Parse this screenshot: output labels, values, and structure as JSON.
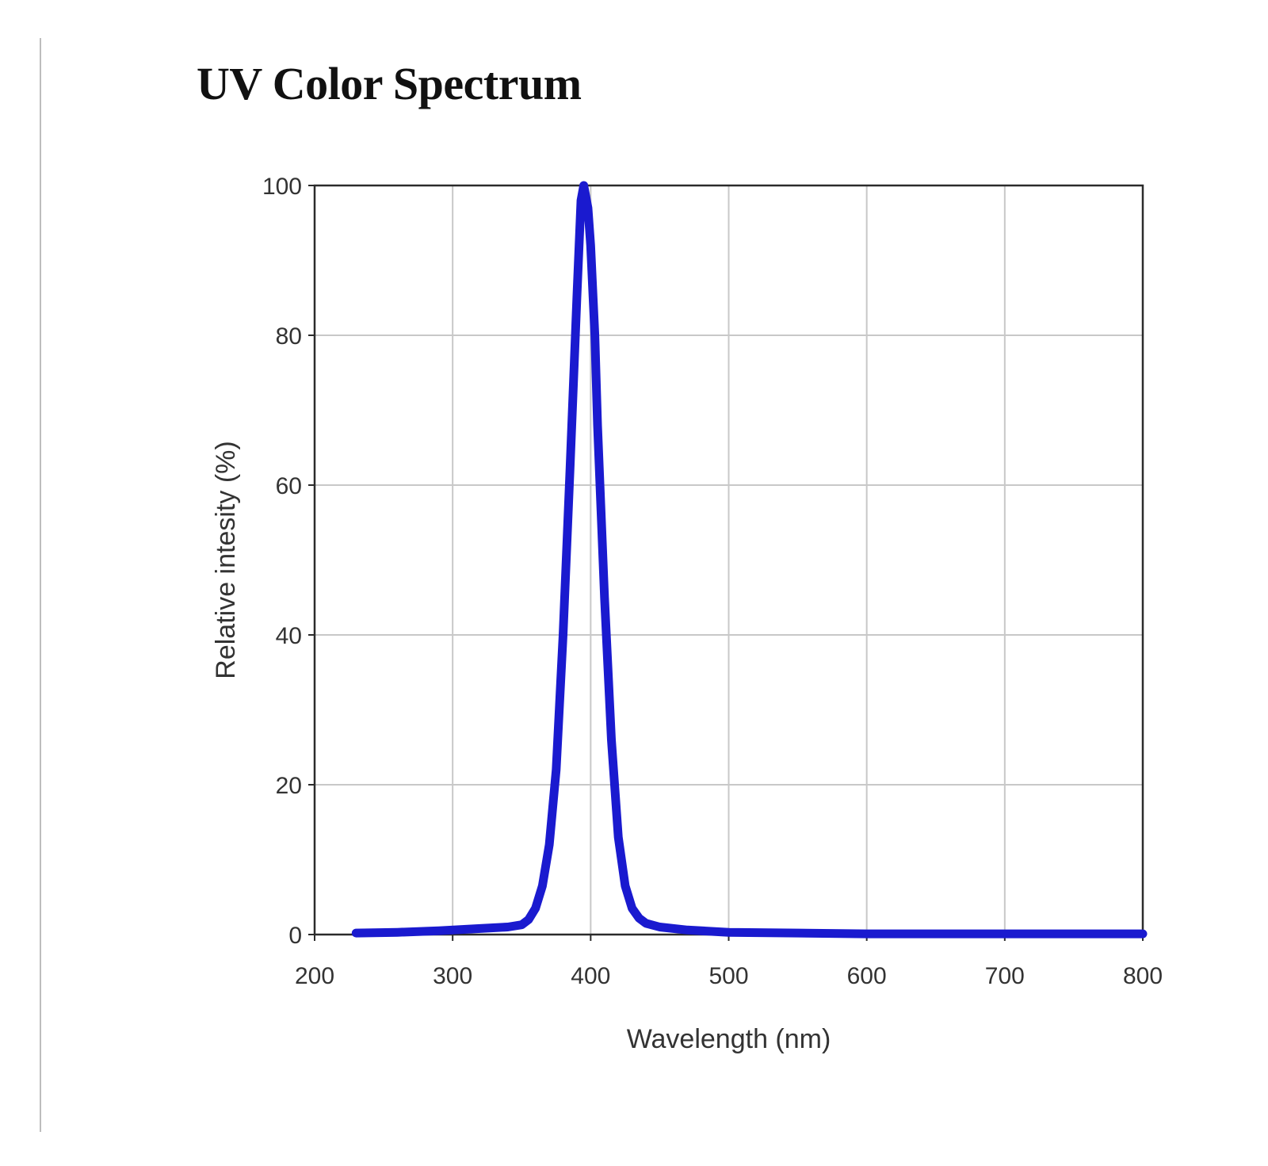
{
  "page": {
    "title": "UV Color Spectrum"
  },
  "chart_data": {
    "type": "line",
    "title": "UV Color Spectrum",
    "xlabel": "Wavelength (nm)",
    "ylabel": "Relative intesity (%)",
    "xlim": [
      200,
      800
    ],
    "ylim": [
      0,
      100
    ],
    "xticks": [
      200,
      300,
      400,
      500,
      600,
      700,
      800
    ],
    "yticks": [
      0,
      20,
      40,
      60,
      80,
      100
    ],
    "grid": true,
    "legend": "none",
    "series": [
      {
        "color": "#1a1acf",
        "x": [
          230,
          260,
          290,
          320,
          340,
          350,
          355,
          360,
          365,
          370,
          375,
          380,
          385,
          390,
          393,
          395,
          398,
          400,
          403,
          405,
          410,
          415,
          420,
          425,
          430,
          435,
          440,
          450,
          470,
          500,
          550,
          600,
          700,
          800
        ],
        "y": [
          0.2,
          0.3,
          0.5,
          0.8,
          1.0,
          1.3,
          2.0,
          3.5,
          6.5,
          12,
          22,
          40,
          62,
          85,
          98,
          100,
          97,
          92,
          80,
          68,
          45,
          26,
          13,
          6.5,
          3.5,
          2.2,
          1.5,
          1.0,
          0.6,
          0.3,
          0.2,
          0.1,
          0.1,
          0.1
        ]
      }
    ]
  }
}
